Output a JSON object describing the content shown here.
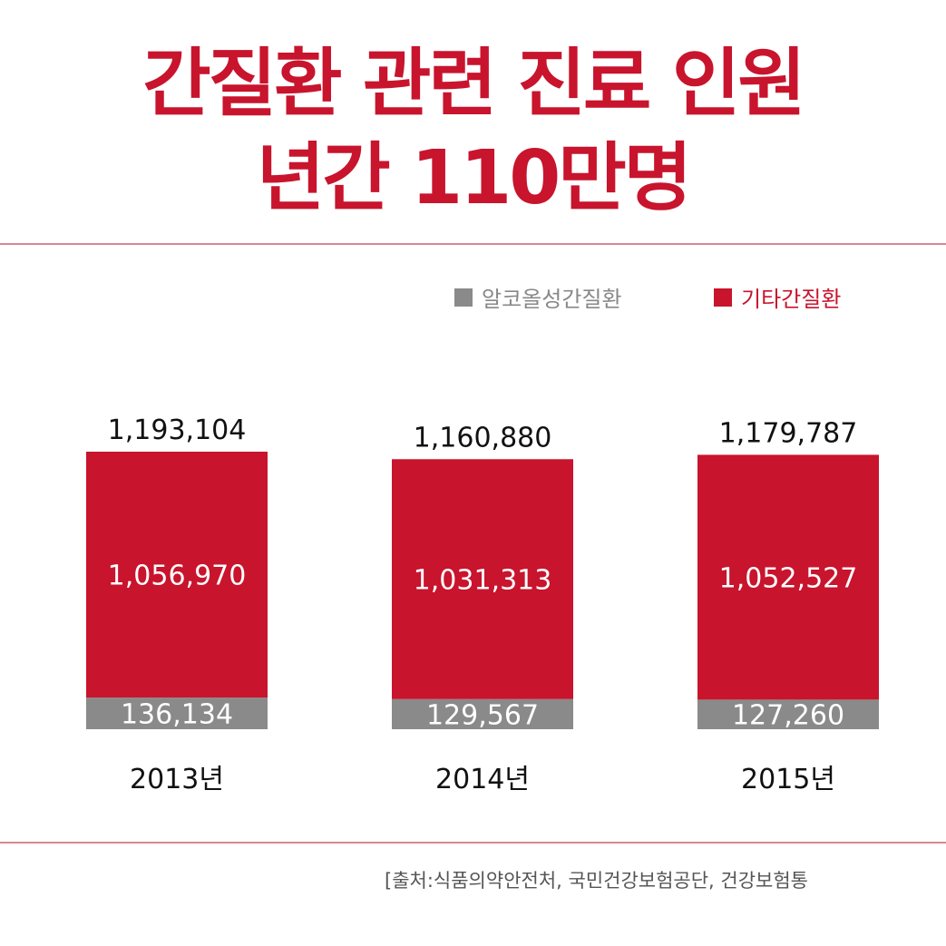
{
  "title": {
    "line1": "간질환 관련 진료 인원",
    "line2": "년간 110만명"
  },
  "legend": [
    {
      "label": "알코올성간질환",
      "color": "#8a8a8a"
    },
    {
      "label": "기타간질환",
      "color": "#c8142d"
    }
  ],
  "chart_data": {
    "type": "bar",
    "stacked": true,
    "categories": [
      "2013년",
      "2014년",
      "2015년"
    ],
    "series": [
      {
        "name": "알코올성간질환",
        "color": "#8a8a8a",
        "values": [
          136134,
          129567,
          127260
        ],
        "labels": [
          "136,134",
          "129,567",
          "127,260"
        ]
      },
      {
        "name": "기타간질환",
        "color": "#c8142d",
        "values": [
          1056970,
          1031313,
          1052527
        ],
        "labels": [
          "1,056,970",
          "1,031,313",
          "1,052,527"
        ]
      }
    ],
    "totals": [
      1193104,
      1160880,
      1179787
    ],
    "total_labels": [
      "1,193,104",
      "1,160,880",
      "1,179,787"
    ]
  },
  "source": "[출처:식품의약안전처, 국민건강보험공단, 건강보험통"
}
